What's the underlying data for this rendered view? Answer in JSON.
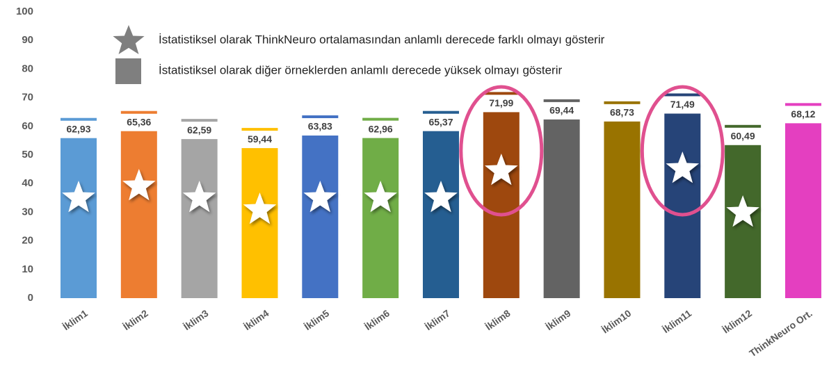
{
  "chart_data": {
    "type": "bar",
    "categories": [
      "İklim1",
      "İklim2",
      "İklim3",
      "İklim4",
      "İklim5",
      "İklim6",
      "İklim7",
      "İklim8",
      "İklim9",
      "İklim10",
      "İklim11",
      "İklim12",
      "ThinkNeuro Ort."
    ],
    "values": [
      62.93,
      65.36,
      62.59,
      59.44,
      63.83,
      62.96,
      65.37,
      71.99,
      69.44,
      68.73,
      71.49,
      60.49,
      68.12
    ],
    "value_labels": [
      "62,93",
      "65,36",
      "62,59",
      "59,44",
      "63,83",
      "62,96",
      "65,37",
      "71,99",
      "69,44",
      "68,73",
      "71,49",
      "60,49",
      "68,12"
    ],
    "colors": [
      "#5b9bd5",
      "#ed7d31",
      "#a5a5a5",
      "#ffc000",
      "#4472c4",
      "#70ad47",
      "#255e91",
      "#9e480e",
      "#636363",
      "#997300",
      "#264478",
      "#43682b",
      "#e43fc0"
    ],
    "ylim": [
      0,
      100
    ],
    "yticks": [
      0,
      10,
      20,
      30,
      40,
      50,
      60,
      70,
      80,
      90,
      100
    ],
    "legend_items": [
      "İstatistiksel olarak ThinkNeuro ortalamasından anlamlı derecede farklı olmayı gösterir",
      "İstatistiksel olarak diğer örneklerden anlamlı derecede yüksek olmayı gösterir"
    ]
  }
}
